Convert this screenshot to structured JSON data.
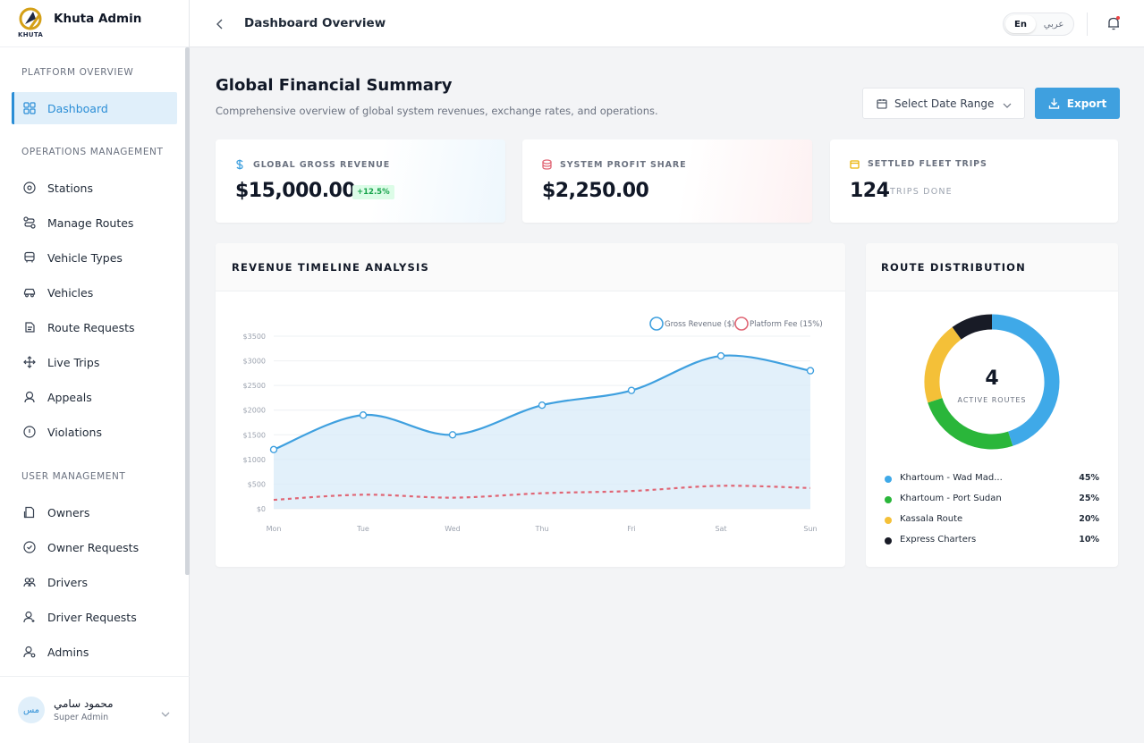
{
  "app": {
    "name": "Khuta Admin",
    "logo_text": "KHUTA"
  },
  "sidebar": {
    "sections": [
      {
        "title": "PLATFORM OVERVIEW",
        "items": [
          {
            "label": "Dashboard",
            "icon": "grid-icon",
            "active": true
          }
        ]
      },
      {
        "title": "OPERATIONS MANAGEMENT",
        "items": [
          {
            "label": "Stations",
            "icon": "location-pin-icon"
          },
          {
            "label": "Manage Routes",
            "icon": "route-icon"
          },
          {
            "label": "Vehicle Types",
            "icon": "bus-icon"
          },
          {
            "label": "Vehicles",
            "icon": "car-icon"
          },
          {
            "label": "Route Requests",
            "icon": "request-icon"
          },
          {
            "label": "Live Trips",
            "icon": "move-arrows-icon"
          },
          {
            "label": "Appeals",
            "icon": "users-support-icon"
          },
          {
            "label": "Violations",
            "icon": "alert-circle-icon"
          }
        ]
      },
      {
        "title": "USER MANAGEMENT",
        "items": [
          {
            "label": "Owners",
            "icon": "owner-icon"
          },
          {
            "label": "Owner Requests",
            "icon": "check-circle-icon"
          },
          {
            "label": "Drivers",
            "icon": "group-icon"
          },
          {
            "label": "Driver Requests",
            "icon": "user-add-icon"
          },
          {
            "label": "Admins",
            "icon": "admin-user-icon"
          }
        ]
      }
    ]
  },
  "user": {
    "initials": "مس",
    "name": "محمود سامي",
    "role": "Super Admin"
  },
  "topbar": {
    "title": "Dashboard Overview",
    "lang_en": "En",
    "lang_ar": "عربي",
    "has_notification": true
  },
  "page": {
    "title": "Global Financial Summary",
    "subtitle": "Comprehensive overview of global system revenues, exchange rates, and operations.",
    "date_range_label": "Select Date Range",
    "export_label": "Export"
  },
  "kpis": {
    "gross": {
      "label": "GLOBAL GROSS REVENUE",
      "value": "$15,000.00",
      "badge": "+12.5%",
      "icon": "dollar-icon"
    },
    "profit": {
      "label": "SYSTEM PROFIT SHARE",
      "value": "$2,250.00",
      "icon": "coins-stack-icon"
    },
    "trips": {
      "label": "SETTLED FLEET TRIPS",
      "value": "124",
      "suffix": "TRIPS DONE",
      "icon": "calendar-icon"
    }
  },
  "revenue_card": {
    "title": "REVENUE TIMELINE ANALYSIS"
  },
  "route_card": {
    "title": "ROUTE DISTRIBUTION",
    "center_value": "4",
    "center_label": "ACTIVE ROUTES"
  },
  "chart_data": [
    {
      "type": "line",
      "x": [
        "Mon",
        "Tue",
        "Wed",
        "Thu",
        "Fri",
        "Sat",
        "Sun"
      ],
      "series": [
        {
          "name": "Gross Revenue ($)",
          "color": "#3fa0df",
          "values": [
            1200,
            1900,
            1500,
            2100,
            2400,
            3100,
            2800
          ],
          "fill": true
        },
        {
          "name": "Platform Fee (15%)",
          "color": "#e06675",
          "values": [
            180,
            285,
            225,
            315,
            360,
            465,
            420
          ],
          "dashed": true
        }
      ],
      "ylim": [
        0,
        3500
      ],
      "yticks": [
        0,
        500,
        1000,
        1500,
        2000,
        2500,
        3000,
        3500
      ],
      "ytick_labels": [
        "$0",
        "$500",
        "$1000",
        "$1500",
        "$2000",
        "$2500",
        "$3000",
        "$3500"
      ],
      "legend": "top-right"
    },
    {
      "type": "pie",
      "categories": [
        "Khartoum - Wad Mad...",
        "Khartoum - Port Sudan",
        "Kassala Route",
        "Express Charters"
      ],
      "values": [
        45,
        25,
        20,
        10
      ],
      "labels": [
        "45%",
        "25%",
        "20%",
        "10%"
      ],
      "colors": [
        "#3fa9e8",
        "#2ab63a",
        "#f4c038",
        "#181b26"
      ],
      "donut": true
    }
  ]
}
